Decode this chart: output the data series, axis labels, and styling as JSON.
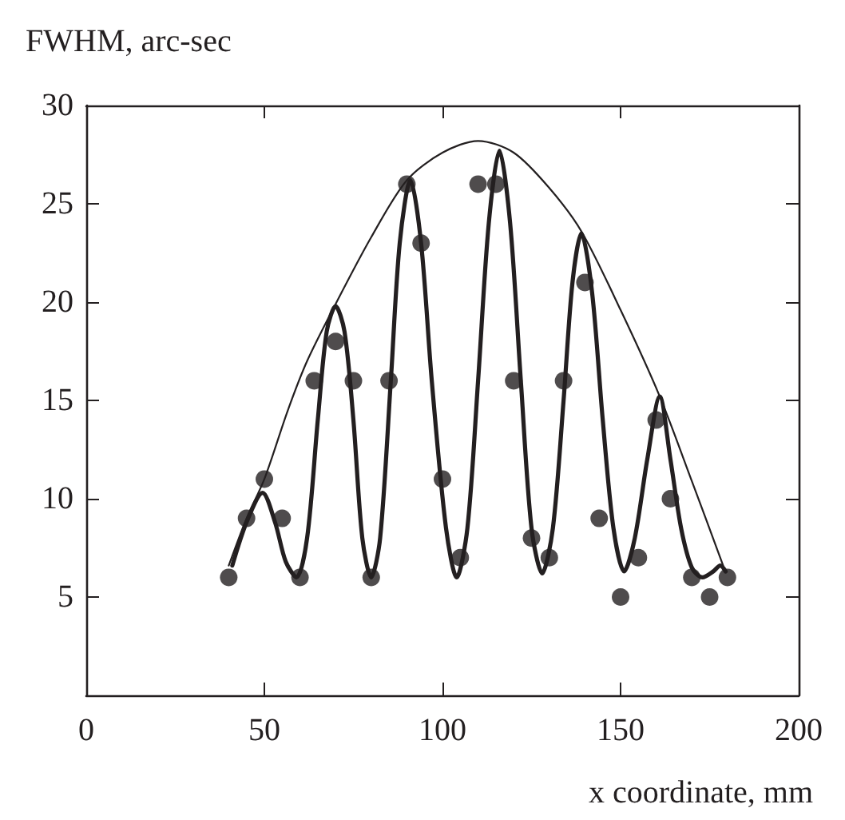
{
  "chart_data": {
    "type": "scatter",
    "xlabel": "x coordinate, mm",
    "ylabel": "FWHM, arc-sec",
    "xlim": [
      0,
      200
    ],
    "xticks": [
      0,
      50,
      100,
      150,
      200
    ],
    "ylim": [
      0,
      30
    ],
    "yticks": [
      5,
      10,
      15,
      20,
      25,
      30
    ],
    "grid": false,
    "series": [
      {
        "marker": "circle",
        "color": "#231f20",
        "x": [
          40,
          45,
          50,
          55,
          60,
          64,
          70,
          75,
          80,
          85,
          90,
          94,
          100,
          105,
          110,
          115,
          120,
          125,
          130,
          134,
          140,
          144,
          150,
          155,
          160,
          164,
          170,
          175,
          180
        ],
        "values": [
          6,
          9,
          11,
          9,
          6,
          16,
          18,
          16,
          6,
          16,
          26,
          23,
          11,
          7,
          26,
          26,
          16,
          8,
          7,
          16,
          21,
          9,
          5,
          7,
          14,
          10,
          6,
          5,
          6
        ]
      },
      {
        "type": "line",
        "marker": "none",
        "line_style": "solid",
        "color": "#231f20",
        "x": [
          40,
          45,
          50,
          56.6,
          62,
          70,
          80,
          90,
          100,
          110,
          120,
          130,
          139,
          150,
          161,
          170,
          179
        ],
        "values": [
          6.6,
          9,
          11,
          14.5,
          17,
          19.9,
          23.3,
          26.2,
          27.6,
          28.2,
          27.6,
          25.8,
          23.6,
          19.6,
          15.2,
          10.9,
          6.5
        ]
      },
      {
        "type": "line",
        "marker": "none",
        "line_style": "solid",
        "color": "#231f20",
        "x": [
          41,
          45,
          49.5,
          53,
          56,
          59,
          62,
          65,
          67.5,
          70,
          72.5,
          75,
          77.5,
          80,
          82.5,
          85.5,
          88,
          91,
          94,
          97,
          101,
          104,
          107,
          110,
          113,
          116,
          119,
          122,
          125,
          128,
          131,
          134,
          136.5,
          139,
          142,
          145,
          148,
          151,
          154,
          157.5,
          161,
          164,
          167,
          170,
          173,
          176,
          178,
          179.5
        ],
        "values": [
          6.6,
          8.8,
          10.3,
          8.8,
          6.8,
          6,
          8,
          14,
          18.5,
          19.8,
          18.5,
          14,
          8,
          6,
          8,
          16,
          23,
          26.2,
          23,
          16,
          8.5,
          6,
          8.5,
          16,
          24,
          27.7,
          24,
          16,
          8.5,
          6.2,
          8.5,
          15,
          21,
          23.5,
          20.5,
          14,
          8.5,
          6.3,
          8,
          12,
          15.2,
          12,
          8.5,
          6.5,
          6,
          6.3,
          6.6,
          6.3
        ]
      }
    ]
  }
}
